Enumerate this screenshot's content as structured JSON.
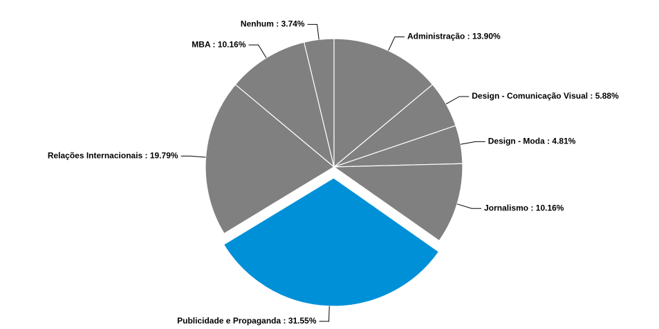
{
  "chart_data": {
    "type": "pie",
    "labels": [
      "Administração : 13.90%",
      "Design - Comunicação Visual : 5.88%",
      "Design - Moda : 4.81%",
      "Jornalismo : 10.16%",
      "Publicidade e Propaganda : 31.55%",
      "Relações Internacionais : 19.79%",
      "MBA : 10.16%",
      "Nenhum : 3.74%"
    ],
    "values": [
      13.9,
      5.88,
      4.81,
      10.16,
      31.55,
      19.79,
      10.16,
      3.74
    ],
    "colors": [
      "#808080",
      "#808080",
      "#808080",
      "#808080",
      "#0090d8",
      "#808080",
      "#808080",
      "#808080"
    ],
    "exploded": [
      false,
      false,
      false,
      false,
      true,
      false,
      false,
      false
    ]
  }
}
